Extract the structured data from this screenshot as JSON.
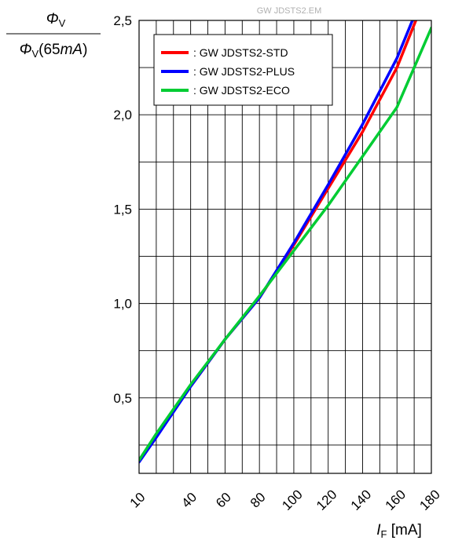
{
  "watermark": "GW JDSTS2.EM",
  "chart_data": {
    "type": "line",
    "ylabel_num_symbol": "Φ",
    "ylabel_num_sub": "V",
    "ylabel_den_symbol": "Φ",
    "ylabel_den_sub": "V",
    "ylabel_den_open": "(65",
    "ylabel_den_unit": "mA",
    "ylabel_den_close": ")",
    "xlabel_symbol": "I",
    "xlabel_sub": "F",
    "xlabel_unit": " [mA]",
    "xlim": [
      10,
      180
    ],
    "ylim": [
      0.1,
      2.5
    ],
    "x_ticks": [
      10,
      40,
      60,
      80,
      100,
      120,
      140,
      160,
      180
    ],
    "y_ticks": [
      0.5,
      1.0,
      1.5,
      2.0,
      2.5
    ],
    "y_tick_labels": [
      "0,5",
      "1,0",
      "1,5",
      "2,0",
      "2,5"
    ],
    "x_grid": [
      20,
      30,
      40,
      50,
      60,
      70,
      80,
      90,
      100,
      110,
      120,
      130,
      140,
      150,
      160,
      170
    ],
    "y_grid": [
      0.25,
      0.5,
      0.75,
      1.0,
      1.25,
      1.5,
      1.75,
      2.0,
      2.25
    ],
    "legend_position": "top-left",
    "series": [
      {
        "name": ": GW JDSTS2-STD",
        "color": "#ff0000",
        "x": [
          10,
          20,
          40,
          60,
          80,
          100,
          120,
          140,
          160,
          171
        ],
        "y": [
          0.17,
          0.3,
          0.56,
          0.81,
          1.03,
          1.31,
          1.61,
          1.91,
          2.25,
          2.5
        ]
      },
      {
        "name": ": GW JDSTS2-PLUS",
        "color": "#0000ff",
        "x": [
          10,
          20,
          40,
          60,
          80,
          100,
          120,
          140,
          160,
          169
        ],
        "y": [
          0.16,
          0.29,
          0.56,
          0.81,
          1.03,
          1.32,
          1.63,
          1.95,
          2.3,
          2.5
        ]
      },
      {
        "name": ": GW JDSTS2-ECO",
        "color": "#00cc33",
        "x": [
          10,
          20,
          40,
          60,
          80,
          100,
          120,
          140,
          160,
          180
        ],
        "y": [
          0.17,
          0.31,
          0.57,
          0.81,
          1.04,
          1.28,
          1.52,
          1.78,
          2.04,
          2.46
        ]
      }
    ]
  }
}
